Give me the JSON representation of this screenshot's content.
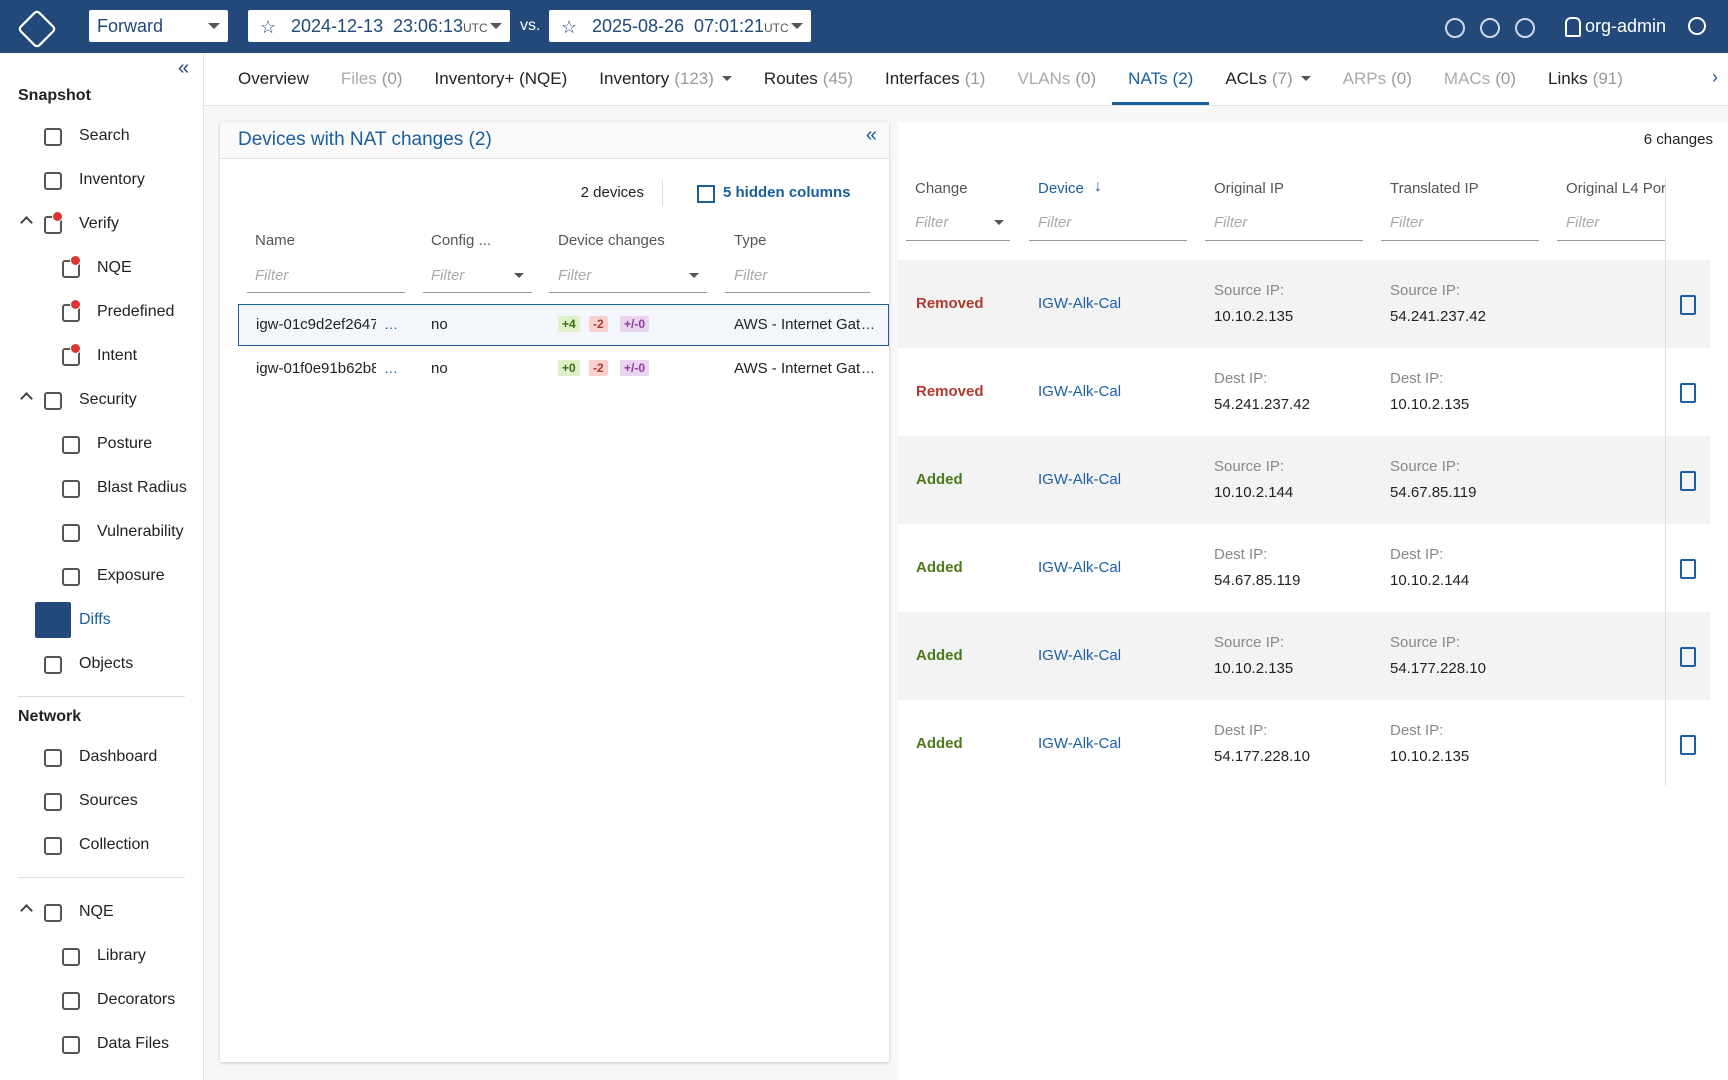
{
  "header": {
    "workspace": "Forward",
    "snapshot_a": {
      "date": "2024-12-13",
      "time": "23:06:13",
      "tz": "UTC"
    },
    "vs": "vs.",
    "snapshot_b": {
      "date": "2025-08-26",
      "time": "07:01:21",
      "tz": "UTC"
    },
    "user": "org-admin"
  },
  "sidebar": {
    "sections": [
      {
        "title": "Snapshot",
        "items": [
          {
            "label": "Search"
          },
          {
            "label": "Inventory"
          },
          {
            "label": "Verify",
            "alert": true,
            "children": [
              {
                "label": "NQE",
                "alert": true
              },
              {
                "label": "Predefined",
                "alert": true
              },
              {
                "label": "Intent",
                "alert": true
              }
            ]
          },
          {
            "label": "Security",
            "children": [
              {
                "label": "Posture"
              },
              {
                "label": "Blast Radius"
              },
              {
                "label": "Vulnerability"
              },
              {
                "label": "Exposure"
              }
            ]
          },
          {
            "label": "Diffs",
            "active": true
          },
          {
            "label": "Objects"
          }
        ]
      },
      {
        "title": "Network",
        "items": [
          {
            "label": "Dashboard"
          },
          {
            "label": "Sources"
          },
          {
            "label": "Collection"
          }
        ]
      },
      {
        "items": [
          {
            "label": "NQE",
            "children": [
              {
                "label": "Library"
              },
              {
                "label": "Decorators"
              },
              {
                "label": "Data Files"
              }
            ]
          }
        ]
      }
    ]
  },
  "tabs": [
    {
      "label": "Overview"
    },
    {
      "label": "Files",
      "count": "(0)",
      "disabled": true
    },
    {
      "label": "Inventory+ (NQE)"
    },
    {
      "label": "Inventory",
      "count": "(123)",
      "menu": true
    },
    {
      "label": "Routes",
      "count": "(45)"
    },
    {
      "label": "Interfaces",
      "count": "(1)"
    },
    {
      "label": "VLANs",
      "count": "(0)",
      "disabled": true
    },
    {
      "label": "NATs",
      "count": "(2)",
      "active": true
    },
    {
      "label": "ACLs",
      "count": "(7)",
      "menu": true
    },
    {
      "label": "ARPs",
      "count": "(0)",
      "disabled": true
    },
    {
      "label": "MACs",
      "count": "(0)",
      "disabled": true
    },
    {
      "label": "Links",
      "count": "(91)"
    }
  ],
  "devices_panel": {
    "title": "Devices with NAT changes (2)",
    "count": "2 devices",
    "hidden_columns": "5 hidden columns",
    "filter_placeholder": "Filter",
    "columns": [
      "Name",
      "Config ...",
      "Device changes",
      "Type"
    ],
    "rows": [
      {
        "name": "igw-01c9d2ef2647",
        "config": "no",
        "changes": [
          "+4",
          "-2",
          "+/-0"
        ],
        "type": "AWS - Internet Gat",
        "selected": true
      },
      {
        "name": "igw-01f0e91b62b8",
        "config": "no",
        "changes": [
          "+0",
          "-2",
          "+/-0"
        ],
        "type": "AWS - Internet Gat"
      }
    ]
  },
  "changes_panel": {
    "count": "6 changes",
    "filter_placeholder": "Filter",
    "columns": [
      "Change",
      "Device",
      "Original IP",
      "Translated IP",
      "Original L4 Por"
    ],
    "rows": [
      {
        "change": "Removed",
        "device": "IGW-Alk-Cal",
        "original_label": "Source IP:",
        "original_ip": "10.10.2.135",
        "translated_label": "Source IP:",
        "translated_ip": "54.241.237.42"
      },
      {
        "change": "Removed",
        "device": "IGW-Alk-Cal",
        "original_label": "Dest IP:",
        "original_ip": "54.241.237.42",
        "translated_label": "Dest IP:",
        "translated_ip": "10.10.2.135"
      },
      {
        "change": "Added",
        "device": "IGW-Alk-Cal",
        "original_label": "Source IP:",
        "original_ip": "10.10.2.144",
        "translated_label": "Source IP:",
        "translated_ip": "54.67.85.119"
      },
      {
        "change": "Added",
        "device": "IGW-Alk-Cal",
        "original_label": "Dest IP:",
        "original_ip": "54.67.85.119",
        "translated_label": "Dest IP:",
        "translated_ip": "10.10.2.144"
      },
      {
        "change": "Added",
        "device": "IGW-Alk-Cal",
        "original_label": "Source IP:",
        "original_ip": "10.10.2.135",
        "translated_label": "Source IP:",
        "translated_ip": "54.177.228.10"
      },
      {
        "change": "Added",
        "device": "IGW-Alk-Cal",
        "original_label": "Dest IP:",
        "original_ip": "54.177.228.10",
        "translated_label": "Dest IP:",
        "translated_ip": "10.10.2.135"
      }
    ]
  }
}
